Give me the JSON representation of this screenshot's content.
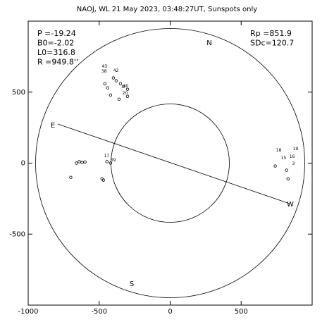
{
  "chart_data": {
    "type": "scatter",
    "title": "NAOJ, WL 21 May 2023, 03:48:27UT, Sunspots only",
    "info_left": [
      "P =-19.24",
      "B0=-2.02",
      "L0=316.8",
      "R =949.8''"
    ],
    "info_right": [
      "Rp =851.9",
      "SDc=120.7"
    ],
    "compass": [
      "N",
      "S",
      "E",
      "W"
    ],
    "xlim": [
      -1000,
      1000
    ],
    "ylim": [
      -1000,
      1000
    ],
    "xticks": [
      -1000,
      -500,
      0,
      500
    ],
    "yticks": [
      -500,
      0,
      500
    ],
    "color": "#000000",
    "spots": {
      "x": [
        -640,
        -620,
        -600,
        -660,
        -700,
        -480,
        -470,
        -445,
        -420,
        -460,
        -440,
        -400,
        -380,
        -350,
        -330,
        -300,
        -420,
        -360,
        -300,
        740,
        820,
        830
      ],
      "y": [
        10,
        5,
        8,
        0,
        -100,
        -110,
        -120,
        10,
        0,
        560,
        530,
        600,
        580,
        560,
        540,
        520,
        480,
        450,
        470,
        -20,
        -50,
        -110
      ]
    },
    "regions": [
      {
        "label": "43",
        "x": -462,
        "y": 680
      },
      {
        "label": "38",
        "x": -466,
        "y": 645
      },
      {
        "label": "42",
        "x": -382,
        "y": 650
      },
      {
        "label": "40",
        "x": -313,
        "y": 541
      },
      {
        "label": "20",
        "x": -318,
        "y": 491
      },
      {
        "label": "17",
        "x": -447,
        "y": 50
      },
      {
        "label": "39",
        "x": -402,
        "y": 20
      },
      {
        "label": "18",
        "x": 764,
        "y": 89
      },
      {
        "label": "19",
        "x": 883,
        "y": 99
      },
      {
        "label": "15",
        "x": 799,
        "y": 35
      },
      {
        "label": "16",
        "x": 859,
        "y": 45
      },
      {
        "label": "3",
        "x": 868,
        "y": -5
      }
    ]
  }
}
